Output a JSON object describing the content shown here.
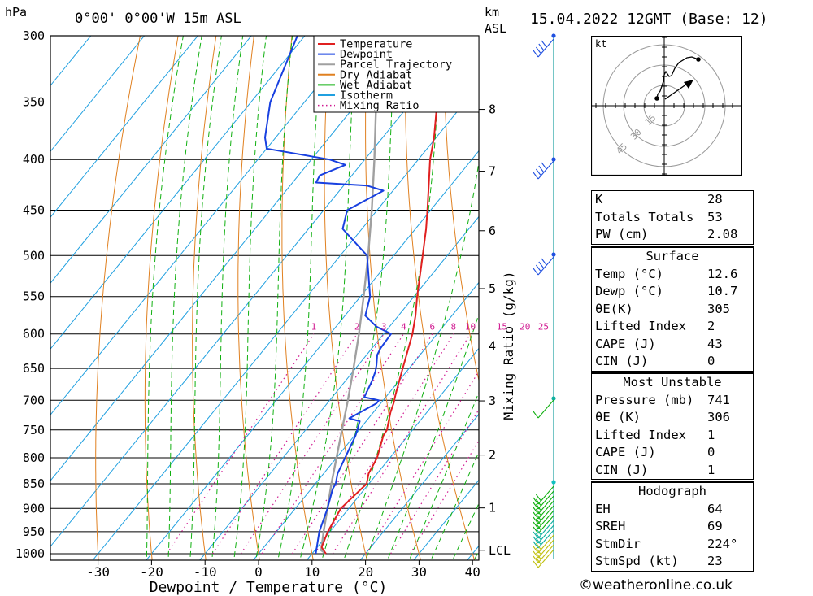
{
  "header": {
    "location": "0°00' 0°00'W 15m ASL",
    "pressure_unit": "hPa",
    "height_unit": "km",
    "height_ref": "ASL",
    "datetime": "15.04.2022 12GMT (Base: 12)"
  },
  "chart_data": {
    "type": "skew-t",
    "xlabel": "Dewpoint / Temperature (°C)",
    "y2label": "Mixing Ratio (g/kg)",
    "x_ticks": [
      -30,
      -20,
      -10,
      0,
      10,
      20,
      30,
      40
    ],
    "xlim": [
      -40,
      40
    ],
    "ylim_hpa": [
      1000,
      300
    ],
    "pressure_levels": [
      300,
      350,
      400,
      450,
      500,
      550,
      600,
      650,
      700,
      750,
      800,
      850,
      900,
      950,
      1000
    ],
    "height_ticks": [
      {
        "label": "8",
        "p": 356
      },
      {
        "label": "7",
        "p": 411
      },
      {
        "label": "6",
        "p": 472
      },
      {
        "label": "5",
        "p": 540
      },
      {
        "label": "4",
        "p": 617
      },
      {
        "label": "3",
        "p": 701
      },
      {
        "label": "2",
        "p": 795
      },
      {
        "label": "1",
        "p": 899
      },
      {
        "label": "LCL",
        "p": 992
      }
    ],
    "mixing_ratio_labels": [
      "1",
      "2",
      "3",
      "4",
      "6",
      "8",
      "10",
      "15",
      "20",
      "25"
    ],
    "mixing_ratio_values": [
      1,
      2,
      3,
      4,
      6,
      8,
      10,
      15,
      20,
      25
    ],
    "legend": [
      "Temperature",
      "Dewpoint",
      "Parcel Trajectory",
      "Dry Adiabat",
      "Wet Adiabat",
      "Isotherm",
      "Mixing Ratio"
    ],
    "colors": {
      "temperature": "#e02020",
      "dewpoint": "#1840e0",
      "parcel": "#a0a0a0",
      "dry_adiabat": "#e08020",
      "wet_adiabat": "#10b010",
      "isotherm": "#20a0e0",
      "mixing_ratio": "#d01890"
    },
    "temperature_profile": [
      [
        1000,
        12.6
      ],
      [
        985,
        10.8
      ],
      [
        950,
        9.6
      ],
      [
        900,
        8.5
      ],
      [
        850,
        9.6
      ],
      [
        830,
        8.4
      ],
      [
        800,
        7.6
      ],
      [
        760,
        5.4
      ],
      [
        750,
        5.2
      ],
      [
        720,
        3.2
      ],
      [
        705,
        2.4
      ],
      [
        690,
        1.4
      ],
      [
        650,
        -1.2
      ],
      [
        620,
        -3.2
      ],
      [
        600,
        -4.6
      ],
      [
        575,
        -6.8
      ],
      [
        550,
        -9.4
      ],
      [
        500,
        -14.6
      ],
      [
        470,
        -18.0
      ],
      [
        450,
        -20.6
      ],
      [
        420,
        -24.8
      ],
      [
        400,
        -27.8
      ],
      [
        380,
        -30.4
      ],
      [
        350,
        -35.2
      ],
      [
        300,
        -43.6
      ]
    ],
    "dewpoint_profile": [
      [
        1000,
        10.7
      ],
      [
        950,
        8.0
      ],
      [
        900,
        6.0
      ],
      [
        860,
        4.0
      ],
      [
        850,
        3.8
      ],
      [
        830,
        2.6
      ],
      [
        800,
        1.6
      ],
      [
        760,
        0.2
      ],
      [
        735,
        -1.2
      ],
      [
        730,
        -3.6
      ],
      [
        705,
        -0.8
      ],
      [
        700,
        -0.8
      ],
      [
        695,
        -4.0
      ],
      [
        670,
        -5.0
      ],
      [
        655,
        -5.8
      ],
      [
        645,
        -6.6
      ],
      [
        630,
        -8.0
      ],
      [
        620,
        -8.4
      ],
      [
        600,
        -8.6
      ],
      [
        590,
        -12.4
      ],
      [
        575,
        -16.2
      ],
      [
        550,
        -18.2
      ],
      [
        500,
        -25.0
      ],
      [
        470,
        -33.6
      ],
      [
        450,
        -35.6
      ],
      [
        430,
        -31.8
      ],
      [
        425,
        -35.6
      ],
      [
        422,
        -45.6
      ],
      [
        415,
        -46.0
      ],
      [
        405,
        -42.8
      ],
      [
        400,
        -46.6
      ],
      [
        390,
        -60.0
      ],
      [
        380,
        -62.0
      ],
      [
        350,
        -66.4
      ],
      [
        300,
        -71.4
      ]
    ],
    "parcel_profile": [
      [
        1000,
        12.6
      ],
      [
        992,
        11.2
      ],
      [
        950,
        8.8
      ],
      [
        900,
        6.0
      ],
      [
        850,
        3.0
      ],
      [
        800,
        0.0
      ],
      [
        750,
        -3.2
      ],
      [
        700,
        -6.6
      ],
      [
        650,
        -10.4
      ],
      [
        600,
        -14.6
      ],
      [
        550,
        -19.4
      ],
      [
        500,
        -24.8
      ],
      [
        450,
        -31.0
      ],
      [
        400,
        -38.2
      ],
      [
        350,
        -46.6
      ],
      [
        300,
        -56.0
      ]
    ]
  },
  "hodograph": {
    "unit": "kt",
    "ring_labels": [
      "15",
      "30",
      "45"
    ]
  },
  "table_general": [
    {
      "label": "K",
      "value": "28"
    },
    {
      "label": "Totals Totals",
      "value": "53"
    },
    {
      "label": "PW (cm)",
      "value": "2.08"
    }
  ],
  "table_surface": {
    "title": "Surface",
    "rows": [
      {
        "label": "Temp (°C)",
        "value": "12.6"
      },
      {
        "label": "Dewp (°C)",
        "value": "10.7"
      },
      {
        "label": "θE(K)",
        "value": "305"
      },
      {
        "label": "Lifted Index",
        "value": "2"
      },
      {
        "label": "CAPE (J)",
        "value": "43"
      },
      {
        "label": "CIN (J)",
        "value": "0"
      }
    ]
  },
  "table_mu": {
    "title": "Most Unstable",
    "rows": [
      {
        "label": "Pressure (mb)",
        "value": "741"
      },
      {
        "label": "θE (K)",
        "value": "306"
      },
      {
        "label": "Lifted Index",
        "value": "1"
      },
      {
        "label": "CAPE (J)",
        "value": "0"
      },
      {
        "label": "CIN (J)",
        "value": "1"
      }
    ]
  },
  "table_hodo": {
    "title": "Hodograph",
    "rows": [
      {
        "label": "EH",
        "value": "64"
      },
      {
        "label": "SREH",
        "value": "69"
      },
      {
        "label": "StmDir",
        "value": "224°"
      },
      {
        "label": "StmSpd (kt)",
        "value": "23"
      }
    ]
  },
  "footer": {
    "copyright_symbol": "©",
    "site": "weatheronline.co.uk"
  }
}
